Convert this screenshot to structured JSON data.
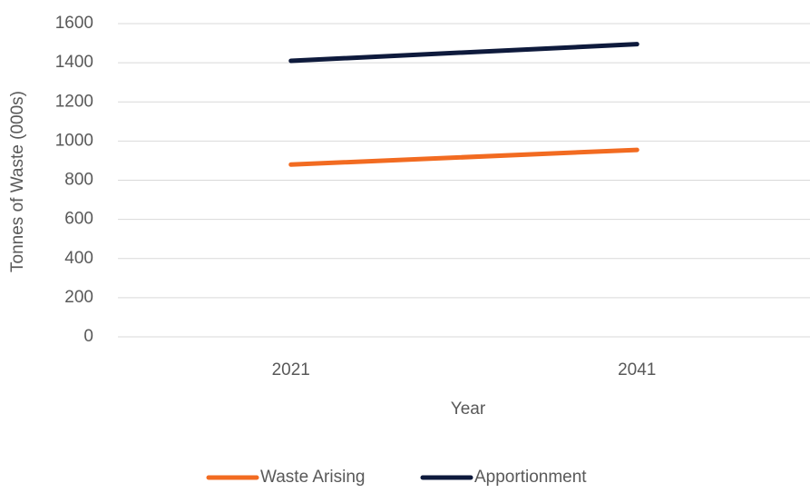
{
  "chart_data": {
    "type": "line",
    "categories": [
      "2021",
      "2041"
    ],
    "series": [
      {
        "name": "Waste Arising",
        "color": "#f26b21",
        "values": [
          880,
          955
        ]
      },
      {
        "name": "Apportionment",
        "color": "#0e1a3c",
        "values": [
          1410,
          1495
        ]
      }
    ],
    "ylim": [
      0,
      1600
    ],
    "yticks": [
      0,
      200,
      400,
      600,
      800,
      1000,
      1200,
      1400,
      1600
    ],
    "ylabel": "Tonnes of Waste (000s)",
    "xlabel": "Year",
    "grid": true,
    "legend": "bottom"
  }
}
